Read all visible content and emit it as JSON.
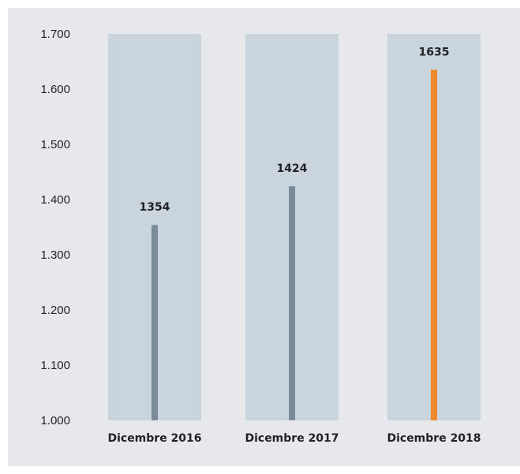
{
  "chart_data": {
    "type": "bar",
    "categories": [
      "Dicembre 2016",
      "Dicembre 2017",
      "Dicembre 2018"
    ],
    "values": [
      1354,
      1424,
      1635
    ],
    "data_labels": [
      "1354",
      "1424",
      "1635"
    ],
    "y_tick_labels": [
      "1.000",
      "1.100",
      "1.200",
      "1.300",
      "1.400",
      "1.500",
      "1.600",
      "1.700"
    ],
    "y_ticks": [
      1000,
      1100,
      1200,
      1300,
      1400,
      1500,
      1600,
      1700
    ],
    "ylim": [
      1000,
      1700
    ],
    "title": "",
    "xlabel": "",
    "ylabel": "",
    "grid": false,
    "colors": {
      "background": "#e6e8ec",
      "column_background": "#cad4dc",
      "bar": "#7b8c99",
      "highlight_bar": "#f18a2c"
    },
    "highlight_index": 2
  }
}
